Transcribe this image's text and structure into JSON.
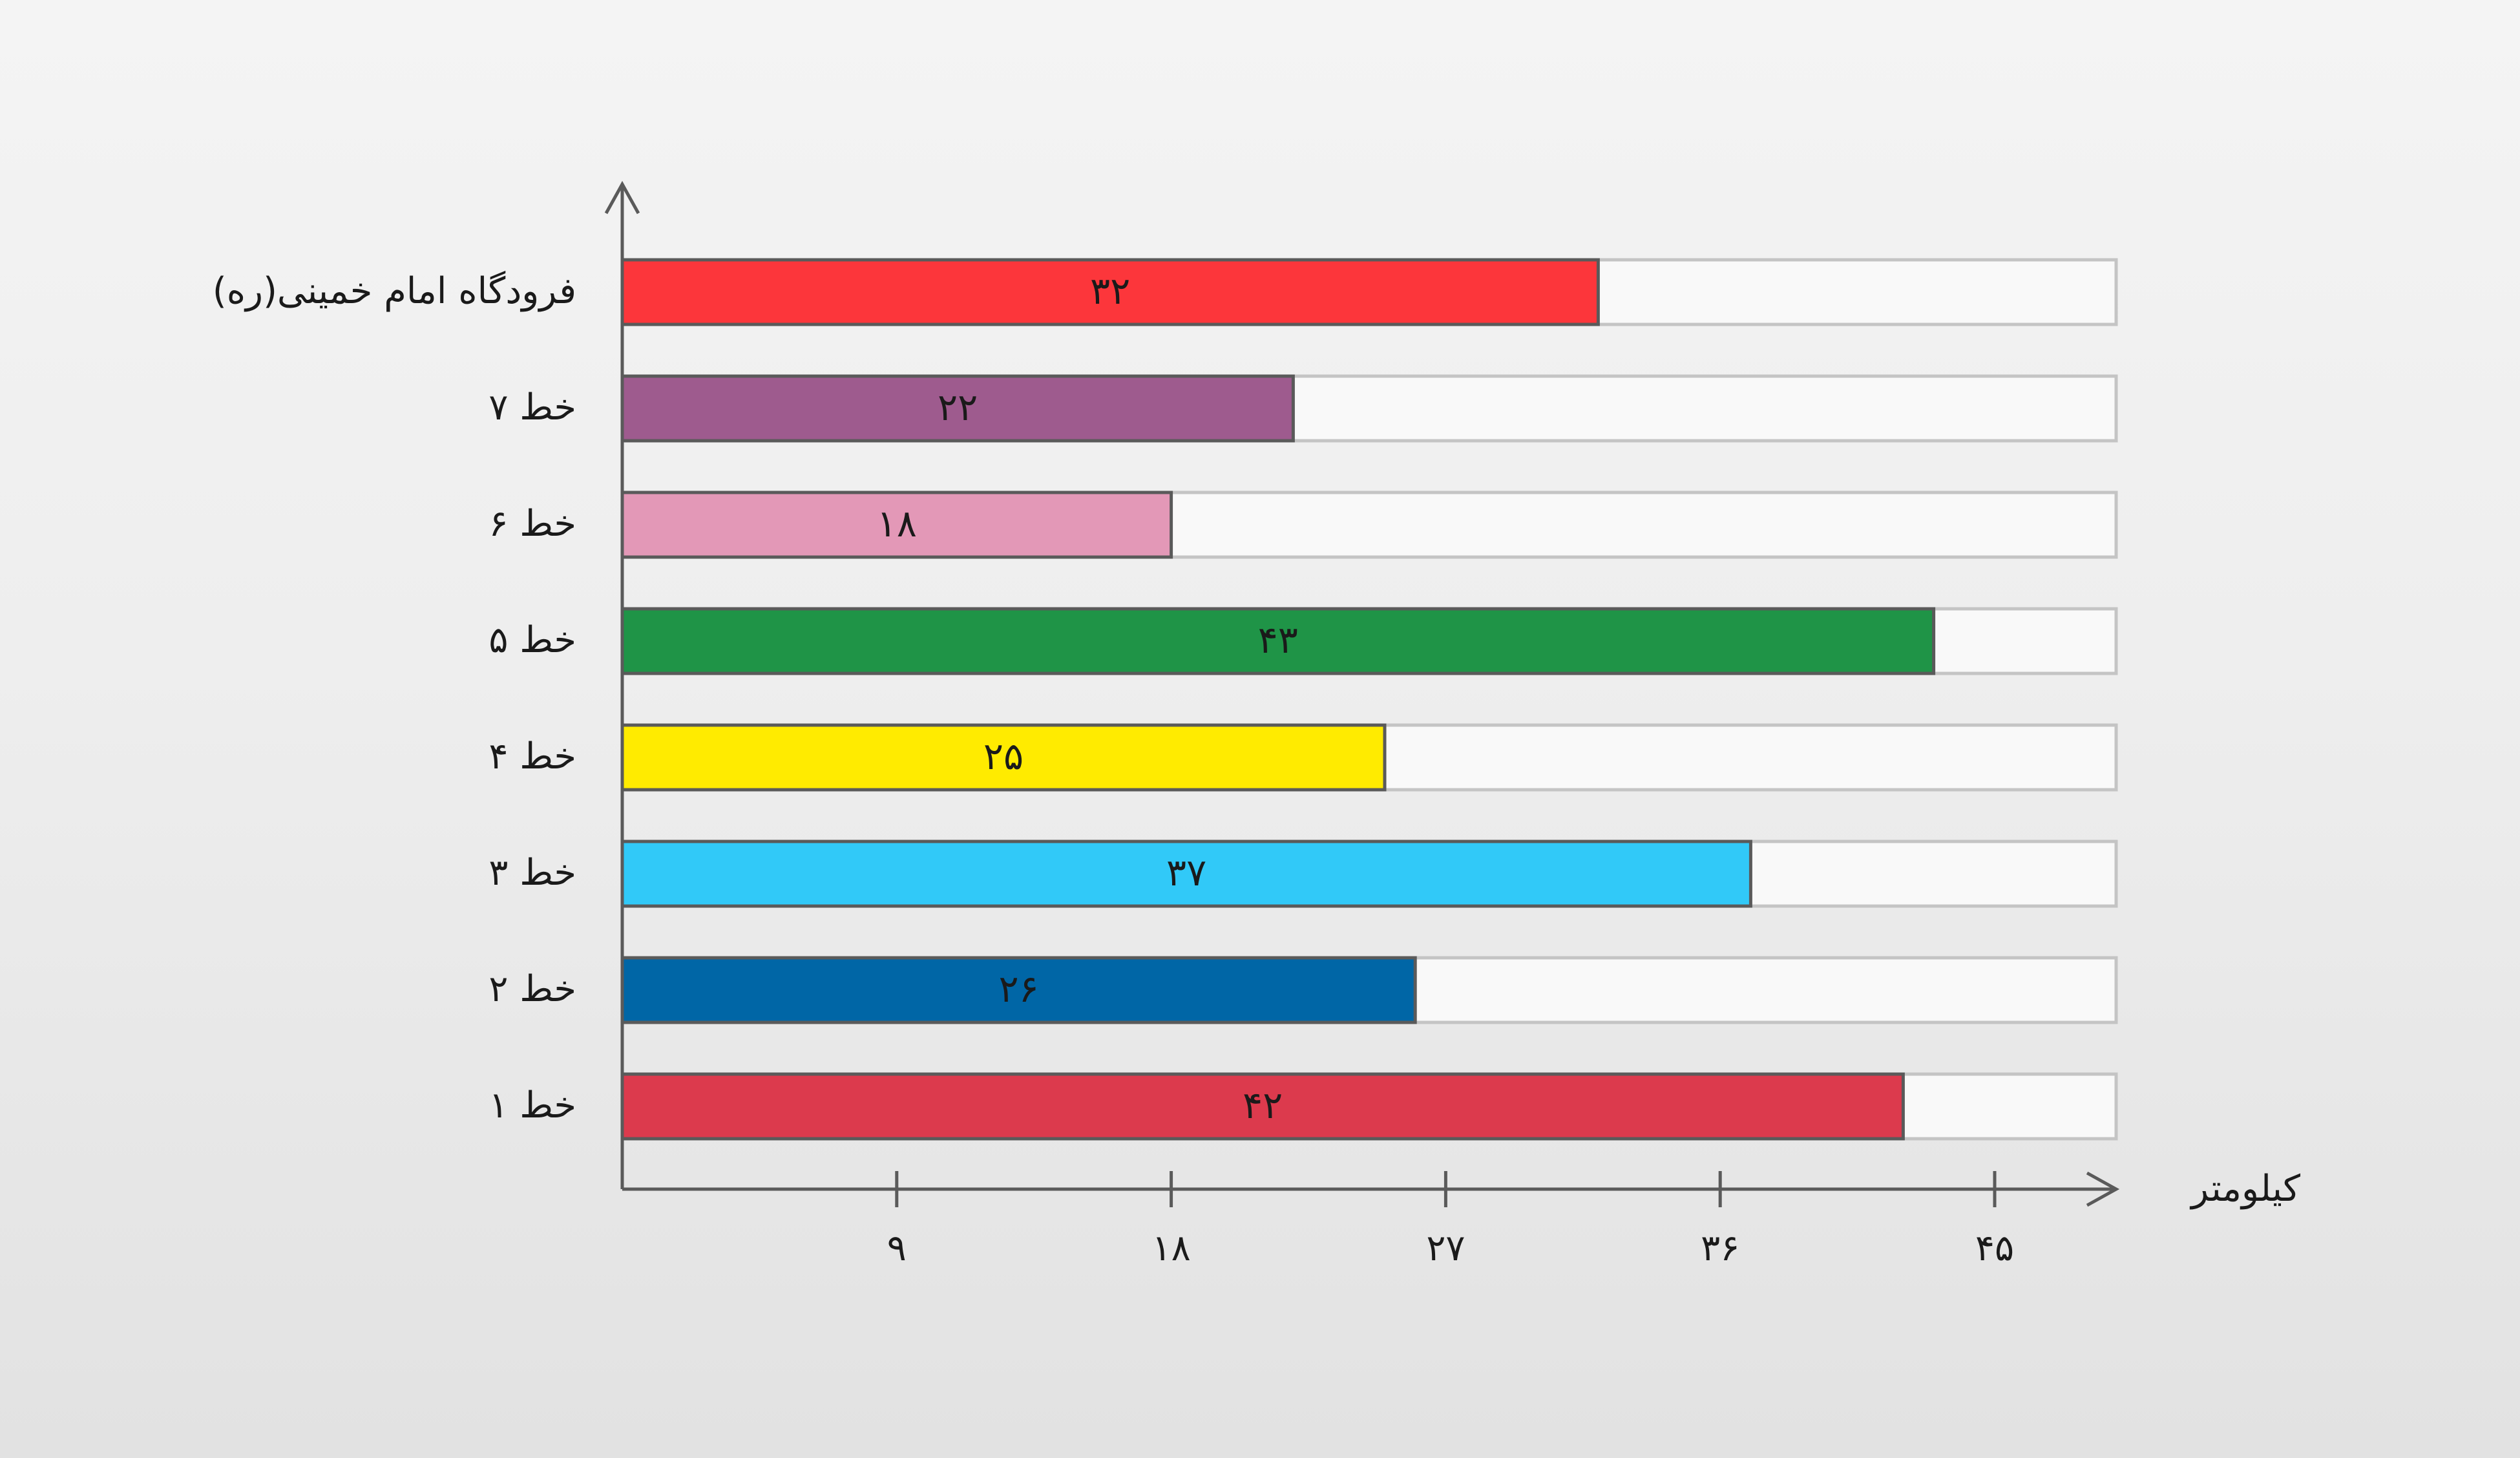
{
  "chart_data": {
    "type": "bar",
    "orientation": "horizontal",
    "categories": [
      "فرودگاه امام خمینی(ره)",
      "خط ۷",
      "خط ۶",
      "خط ۵",
      "خط ۴",
      "خط ۳",
      "خط ۲",
      "خط ۱"
    ],
    "values": [
      32,
      22,
      18,
      43,
      25,
      37,
      26,
      42
    ],
    "value_labels": [
      "۳۲",
      "۲۲",
      "۱۸",
      "۴۳",
      "۲۵",
      "۳۷",
      "۲۶",
      "۴۲"
    ],
    "colors": [
      "#fc363b",
      "#9e5b8e",
      "#e398b7",
      "#1f9447",
      "#ffeb00",
      "#31c9f8",
      "#0066a6",
      "#dc3a4d"
    ],
    "background_track_color": "#f9f9f9",
    "xlabel": "کیلومتر",
    "ylabel": "",
    "title": "",
    "xlim": [
      0,
      49
    ],
    "x_ticks": [
      9,
      18,
      27,
      36,
      45
    ],
    "x_tick_labels": [
      "۹",
      "۱۸",
      "۲۷",
      "۳۶",
      "۴۵"
    ],
    "grid": false,
    "legend": "none"
  }
}
